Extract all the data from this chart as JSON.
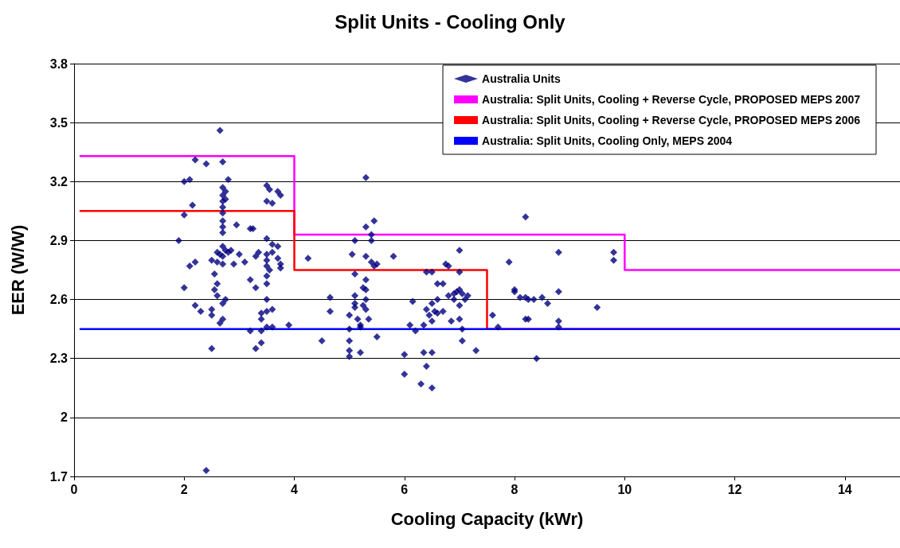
{
  "chart_data": {
    "type": "scatter",
    "title": "Split Units - Cooling Only",
    "xlabel": "Cooling Capacity (kWr)",
    "ylabel": "EER (W/W)",
    "xlim": [
      0,
      15
    ],
    "xticks": [
      0,
      2,
      4,
      6,
      8,
      10,
      12,
      14
    ],
    "ylim": [
      1.7,
      3.8
    ],
    "yticks": [
      1.7,
      2,
      2.3,
      2.6,
      2.9,
      3.2,
      3.5,
      3.8
    ],
    "grid": "y",
    "legend": "top right",
    "series": [
      {
        "name": "Australia Units",
        "marker": "diamond",
        "color": "#000080",
        "x": [
          1.9,
          2.0,
          2.0,
          2.0,
          2.1,
          2.15,
          2.2,
          2.1,
          2.2,
          2.2,
          2.3,
          2.4,
          2.4,
          2.5,
          2.5,
          2.5,
          2.55,
          2.55,
          2.5,
          2.6,
          2.6,
          2.65,
          2.6,
          2.6,
          2.65,
          2.7,
          2.65,
          2.7,
          2.7,
          2.7,
          2.75,
          2.7,
          2.7,
          2.7,
          2.75,
          2.8,
          2.7,
          2.7,
          2.7,
          2.7,
          2.75,
          2.8,
          2.7,
          2.7,
          2.75,
          2.7,
          2.85,
          2.9,
          2.95,
          3.0,
          3.2,
          3.25,
          3.1,
          3.2,
          3.2,
          3.3,
          3.3,
          3.3,
          3.35,
          3.4,
          3.4,
          3.4,
          3.4,
          3.5,
          3.5,
          3.5,
          3.5,
          3.5,
          3.5,
          3.5,
          3.5,
          3.5,
          3.5,
          3.5,
          3.55,
          3.6,
          3.6,
          3.6,
          3.6,
          3.55,
          3.6,
          3.7,
          3.75,
          3.7,
          3.7,
          3.75,
          3.75,
          3.9,
          4.25,
          4.5,
          4.65,
          4.65,
          5.0,
          5.0,
          5.0,
          5.0,
          5.0,
          5.05,
          5.1,
          5.1,
          5.1,
          5.1,
          5.1,
          5.15,
          5.2,
          5.2,
          5.2,
          5.25,
          5.25,
          5.3,
          5.3,
          5.3,
          5.3,
          5.3,
          5.3,
          5.35,
          5.3,
          5.4,
          5.4,
          5.45,
          5.4,
          5.45,
          5.5,
          5.5,
          5.8,
          6.0,
          6.0,
          6.1,
          6.15,
          6.2,
          6.3,
          6.4,
          6.35,
          6.35,
          6.4,
          6.45,
          6.5,
          6.5,
          6.4,
          6.5,
          6.5,
          6.5,
          6.55,
          6.6,
          6.6,
          6.6,
          6.7,
          6.7,
          6.75,
          6.8,
          6.8,
          6.85,
          6.9,
          6.9,
          6.95,
          7.0,
          7.0,
          7.0,
          7.0,
          7.05,
          7.1,
          7.0,
          7.05,
          7.05,
          7.15,
          7.3,
          7.6,
          7.7,
          7.9,
          8.0,
          8.0,
          8.1,
          8.2,
          8.25,
          8.2,
          8.2,
          8.25,
          8.35,
          8.4,
          8.5,
          8.6,
          8.8,
          8.8,
          8.8,
          8.8,
          9.5,
          9.8,
          9.8
        ],
        "values": [
          2.9,
          3.2,
          3.03,
          2.66,
          3.21,
          3.08,
          3.31,
          2.77,
          2.79,
          2.57,
          2.54,
          3.29,
          1.73,
          2.35,
          2.52,
          2.55,
          2.65,
          2.73,
          2.8,
          2.79,
          2.84,
          2.83,
          2.68,
          2.62,
          2.48,
          2.5,
          3.46,
          3.3,
          3.17,
          3.13,
          3.15,
          3.1,
          3.07,
          3.04,
          3.11,
          3.21,
          3.0,
          2.97,
          2.94,
          2.87,
          2.85,
          2.84,
          2.82,
          2.78,
          2.6,
          2.58,
          2.85,
          2.78,
          2.98,
          2.83,
          2.96,
          2.96,
          2.79,
          2.7,
          2.44,
          2.35,
          2.66,
          2.82,
          2.84,
          2.38,
          2.53,
          2.5,
          2.44,
          2.46,
          2.54,
          2.6,
          2.68,
          2.72,
          2.77,
          2.8,
          2.83,
          2.91,
          3.1,
          3.18,
          3.16,
          2.88,
          2.84,
          2.55,
          2.46,
          2.75,
          3.09,
          3.15,
          3.13,
          2.87,
          2.81,
          2.78,
          2.76,
          2.47,
          2.81,
          2.39,
          2.61,
          2.54,
          2.52,
          2.45,
          2.39,
          2.34,
          2.31,
          2.83,
          2.9,
          2.73,
          2.62,
          2.58,
          2.56,
          2.5,
          2.47,
          2.33,
          2.46,
          2.57,
          2.66,
          2.97,
          2.82,
          2.7,
          2.65,
          2.6,
          2.55,
          2.5,
          3.22,
          2.9,
          2.93,
          3.0,
          2.79,
          2.77,
          2.78,
          2.41,
          2.82,
          2.32,
          2.22,
          2.47,
          2.59,
          2.44,
          2.17,
          2.26,
          2.33,
          2.47,
          2.55,
          2.52,
          2.15,
          2.33,
          2.74,
          2.74,
          2.49,
          2.58,
          2.54,
          2.68,
          2.6,
          2.53,
          2.68,
          2.54,
          2.78,
          2.77,
          2.62,
          2.49,
          2.6,
          2.63,
          2.64,
          2.85,
          2.74,
          2.57,
          2.65,
          2.63,
          2.6,
          2.5,
          2.45,
          2.39,
          2.62,
          2.34,
          2.52,
          2.46,
          2.79,
          2.65,
          2.64,
          2.61,
          2.61,
          2.6,
          3.02,
          2.5,
          2.5,
          2.6,
          2.3,
          2.61,
          2.58,
          2.84,
          2.64,
          2.49,
          2.46,
          2.56,
          2.84,
          2.8
        ]
      },
      {
        "name": "Australia: Split Units, Cooling + Reverse Cycle, PROPOSED MEPS 2007",
        "type": "line",
        "marker": "none",
        "color": "#ff00ff",
        "x": [
          0.1,
          4,
          4,
          10,
          10,
          15
        ],
        "values": [
          3.33,
          3.33,
          2.93,
          2.93,
          2.75,
          2.75
        ]
      },
      {
        "name": "Australia: Split Units, Cooling + Reverse Cycle, PROPOSED MEPS 2006",
        "type": "line",
        "marker": "none",
        "color": "#ff0000",
        "x": [
          0.1,
          4,
          4,
          7.5,
          7.5,
          15
        ],
        "values": [
          3.05,
          3.05,
          2.75,
          2.75,
          2.45,
          2.45
        ]
      },
      {
        "name": "Australia: Split Units, Cooling Only, MEPS 2004",
        "type": "line",
        "marker": "none",
        "color": "#0000ff",
        "x": [
          0.1,
          15
        ],
        "values": [
          2.45,
          2.45
        ]
      }
    ]
  }
}
